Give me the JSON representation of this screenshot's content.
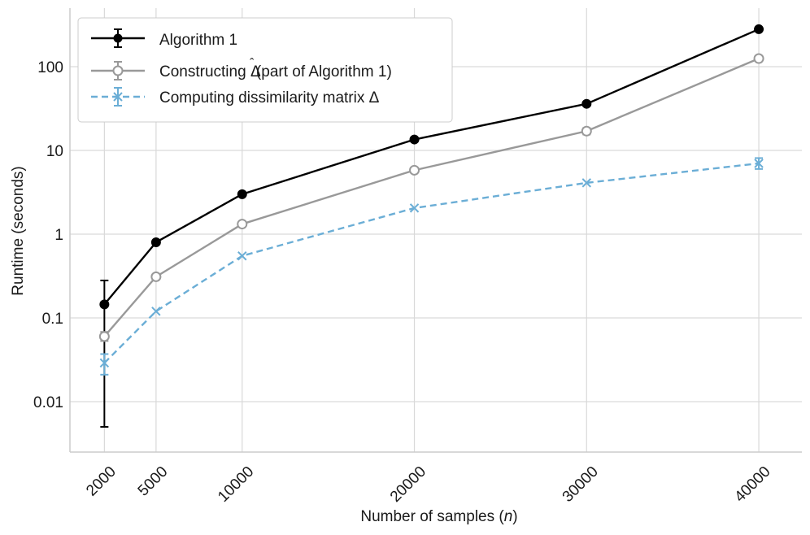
{
  "chart_data": {
    "type": "line",
    "xlabel_prefix": "Number of samples (",
    "xlabel_var": "n",
    "xlabel_suffix": ")",
    "ylabel": "Runtime (seconds)",
    "yscale": "log",
    "xlim": [
      0,
      42500
    ],
    "ylim": [
      0.0025,
      500
    ],
    "x": [
      2000,
      5000,
      10000,
      20000,
      30000,
      40000
    ],
    "x_ticks": [
      "2000",
      "5000",
      "10000",
      "20000",
      "30000",
      "40000"
    ],
    "y_ticks": [
      {
        "value": 0.01,
        "label": "0.01"
      },
      {
        "value": 0.1,
        "label": "0.1"
      },
      {
        "value": 1,
        "label": "1"
      },
      {
        "value": 10,
        "label": "10"
      },
      {
        "value": 100,
        "label": "100"
      }
    ],
    "grid": true,
    "legend_position": "top-left",
    "series": [
      {
        "name": "Algorithm 1",
        "color": "#000000",
        "linestyle": "solid",
        "marker": "filled-circle",
        "values": [
          0.145,
          0.8,
          3.0,
          13.5,
          36,
          280
        ],
        "err_low": [
          0.005,
          0.8,
          3.0,
          13.5,
          36,
          280
        ],
        "err_high": [
          0.28,
          0.8,
          3.0,
          13.5,
          36,
          280
        ]
      },
      {
        "name_parts": [
          "Constructing ",
          "Δ",
          "̂",
          " (part of Algorithm 1)"
        ],
        "name": "Constructing Δ̂ (part of Algorithm 1)",
        "color": "#999999",
        "linestyle": "solid",
        "marker": "open-circle",
        "values": [
          0.06,
          0.31,
          1.32,
          5.8,
          17,
          125
        ],
        "err_low": [
          0.053,
          0.31,
          1.32,
          5.8,
          15.5,
          120
        ],
        "err_high": [
          0.068,
          0.31,
          1.32,
          5.8,
          18.5,
          130
        ]
      },
      {
        "name": "Computing dissimilarity matrix Δ",
        "color": "#6baed6",
        "linestyle": "dashed",
        "marker": "x",
        "values": [
          0.029,
          0.12,
          0.55,
          2.05,
          4.1,
          7.0
        ],
        "err_low": [
          0.021,
          0.12,
          0.55,
          2.05,
          4.1,
          6.0
        ],
        "err_high": [
          0.037,
          0.12,
          0.55,
          2.05,
          4.1,
          8.1
        ]
      }
    ]
  }
}
